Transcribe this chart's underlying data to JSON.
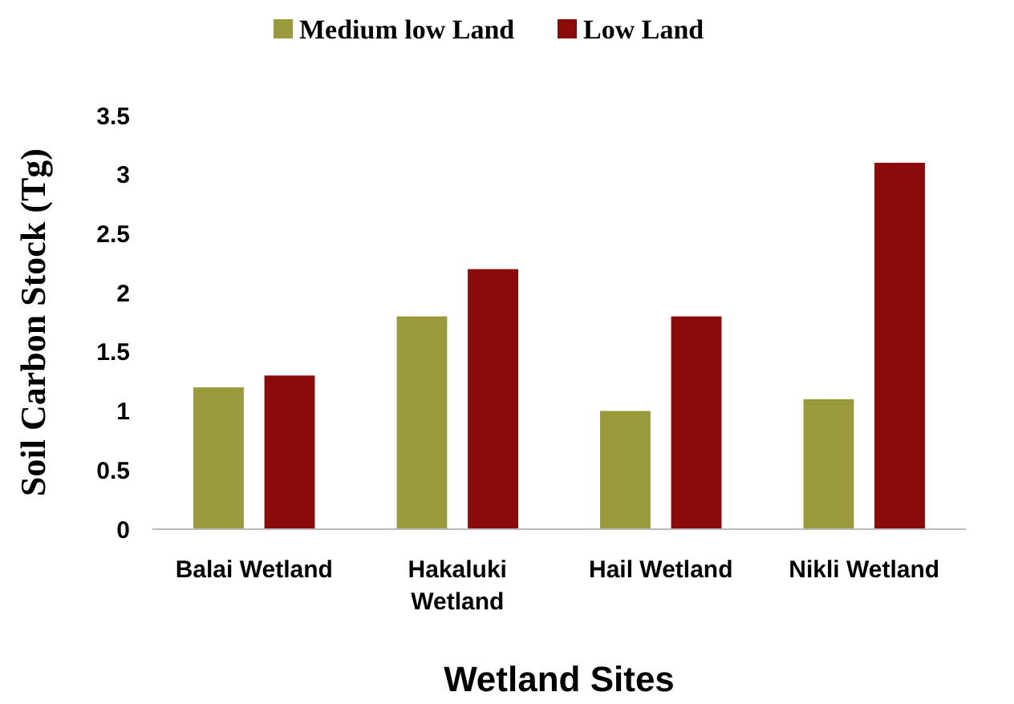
{
  "chart_data": {
    "type": "bar",
    "xlabel": "Wetland Sites",
    "ylabel": "Soil Carbon Stock (Tg)",
    "categories": [
      "Balai Wetland",
      "Hakaluki Wetland",
      "Hail Wetland",
      "Nikli Wetland"
    ],
    "series": [
      {
        "name": "Medium low Land",
        "color": "#9a9a3c",
        "values": [
          1.2,
          1.8,
          1.0,
          1.1
        ]
      },
      {
        "name": "Low Land",
        "color": "#8b0a0a",
        "values": [
          1.3,
          2.2,
          1.8,
          3.1
        ]
      }
    ],
    "ylim": [
      0,
      3.5
    ],
    "yticks": [
      0,
      0.5,
      1,
      1.5,
      2,
      2.5,
      3,
      3.5
    ],
    "legend": "top",
    "grid": false
  }
}
